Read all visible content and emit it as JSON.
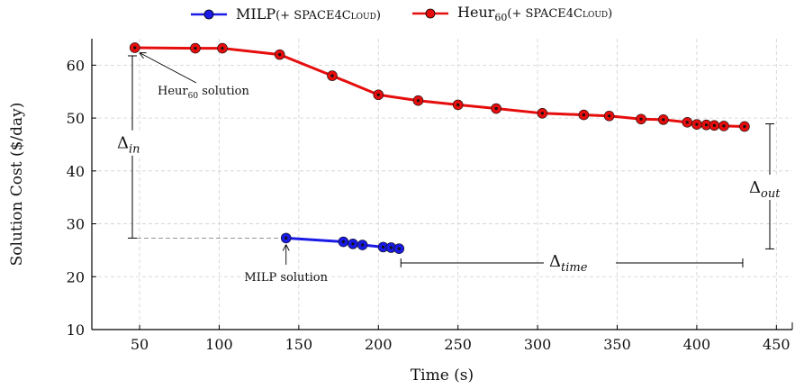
{
  "chart_data": {
    "type": "line",
    "xlabel": "Time (s)",
    "ylabel": "Solution Cost ($/day)",
    "xlim": [
      20,
      460
    ],
    "ylim": [
      10,
      65
    ],
    "xticks": [
      50,
      100,
      150,
      200,
      250,
      300,
      350,
      400,
      450
    ],
    "yticks": [
      10,
      20,
      30,
      40,
      50,
      60
    ],
    "grid": true,
    "legend_position": "top",
    "series": [
      {
        "name": "MILP",
        "name_suffix": "(+ SPACE4Cloud)",
        "color": "#1a1ae6",
        "x": [
          142,
          178,
          184,
          190,
          203,
          208,
          213
        ],
        "y": [
          27.3,
          26.6,
          26.2,
          26.0,
          25.6,
          25.5,
          25.3
        ]
      },
      {
        "name": "Heur",
        "name_sub": "60",
        "name_suffix": "(+ SPACE4Cloud)",
        "color": "#e60d0d",
        "x": [
          47,
          85,
          102,
          138,
          171,
          200,
          225,
          250,
          274,
          303,
          329,
          345,
          365,
          379,
          394,
          400,
          406,
          411,
          417,
          430
        ],
        "y": [
          63.3,
          63.2,
          63.2,
          62.0,
          58.0,
          54.4,
          53.3,
          52.5,
          51.8,
          50.9,
          50.6,
          50.4,
          49.8,
          49.7,
          49.2,
          48.8,
          48.7,
          48.6,
          48.5,
          48.4
        ]
      }
    ],
    "annotations": {
      "heur_solution": {
        "prefix": "Heur",
        "sub": "60",
        "suffix": " solution"
      },
      "milp_solution": "MILP solution",
      "delta_in": {
        "symbol": "Δ",
        "sub": "in"
      },
      "delta_out": {
        "symbol": "Δ",
        "sub": "out"
      },
      "delta_time": {
        "symbol": "Δ",
        "sub": "time"
      }
    }
  }
}
